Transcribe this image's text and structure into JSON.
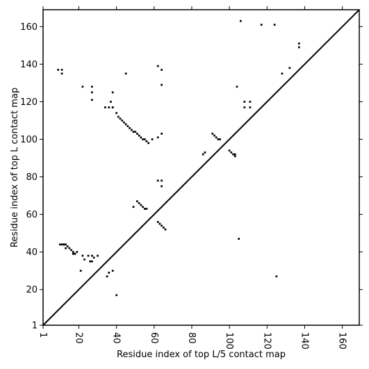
{
  "chart_data": {
    "type": "scatter",
    "xlabel": "Residue index of top L/5 contact map",
    "ylabel": "Residue index of top L contact map",
    "xlim": [
      1,
      169
    ],
    "ylim": [
      1,
      169
    ],
    "x_ticks": [
      1,
      20,
      40,
      60,
      80,
      100,
      120,
      140,
      160
    ],
    "y_ticks": [
      1,
      20,
      40,
      60,
      80,
      100,
      120,
      140,
      160
    ],
    "diagonal": {
      "from": [
        1,
        1
      ],
      "to": [
        169,
        169
      ],
      "color": "#000000"
    },
    "marker_color": "#000000",
    "series": [
      {
        "x": [
          40,
          38,
          21,
          27,
          27,
          22,
          15,
          16,
          17,
          18,
          11,
          12,
          13,
          10,
          49,
          51,
          52,
          53,
          54,
          55,
          56,
          62,
          63,
          64,
          65,
          66,
          86,
          87
        ],
        "y": [
          17,
          30,
          30,
          35,
          38,
          38,
          42,
          41,
          40,
          39,
          44,
          44,
          44,
          44,
          64,
          67,
          66,
          65,
          64,
          63,
          63,
          56,
          55,
          54,
          53,
          52,
          92,
          93
        ]
      },
      {
        "x": [
          22,
          27,
          27,
          27,
          34,
          36,
          37,
          38,
          38,
          40,
          41,
          42,
          43,
          44,
          45,
          46,
          47,
          48,
          49,
          50,
          51,
          52,
          53,
          54,
          55,
          56,
          57,
          59,
          62,
          62,
          62,
          64,
          64,
          64,
          64,
          64,
          45,
          38,
          11,
          11,
          9
        ],
        "y": [
          128,
          128,
          125,
          121,
          117,
          117,
          120,
          125,
          117,
          114,
          112,
          111,
          110,
          109,
          108,
          107,
          106,
          105,
          104,
          104,
          103,
          102,
          101,
          100,
          100,
          99,
          98,
          100,
          78,
          101,
          139,
          78,
          75,
          103,
          137,
          129,
          135,
          117,
          137,
          135,
          137
        ]
      },
      {
        "x": [
          91,
          92,
          93,
          94,
          95,
          100,
          101,
          102,
          103,
          103,
          104,
          105,
          106,
          108,
          108,
          111,
          111,
          117,
          124,
          125,
          128,
          132,
          137,
          137
        ],
        "y": [
          103,
          102,
          101,
          100,
          100,
          94,
          93,
          92,
          91,
          92,
          128,
          47,
          163,
          120,
          117,
          120,
          117,
          161,
          161,
          27,
          135,
          138,
          151,
          149
        ]
      },
      {
        "x": [
          26,
          30,
          35,
          19,
          17,
          14,
          13,
          12,
          28,
          36,
          23,
          25
        ],
        "y": [
          35,
          38,
          27,
          40,
          39,
          43,
          42,
          44,
          37,
          29,
          36,
          38
        ]
      }
    ]
  }
}
